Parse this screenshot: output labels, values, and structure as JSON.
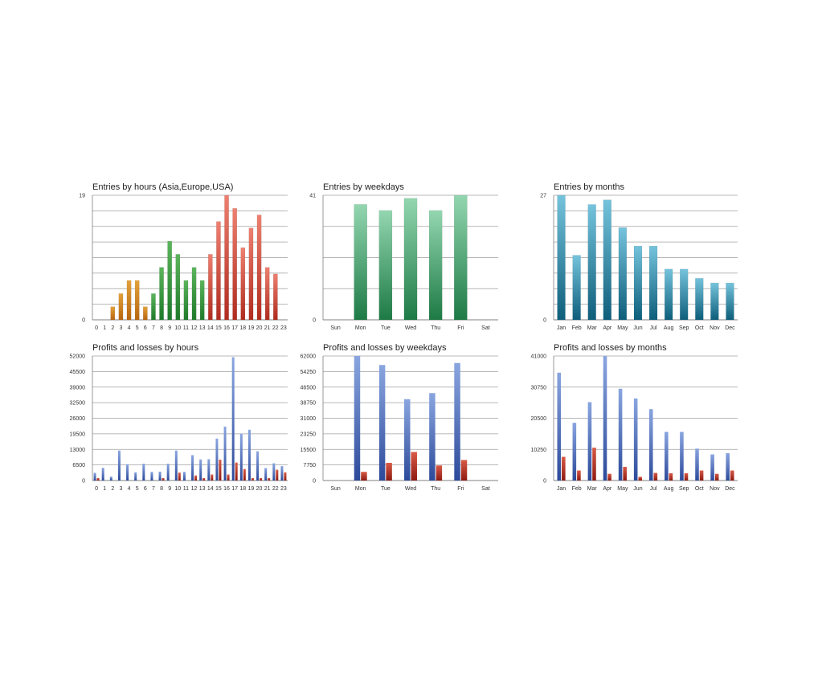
{
  "colors": {
    "grid": "#a0a0a0",
    "axis": "#808080",
    "asia_top": "#e3a23a",
    "asia_bottom": "#b8650f",
    "europe_top": "#5bb55b",
    "europe_bottom": "#1f7a2a",
    "usa_top": "#ee8070",
    "usa_bottom": "#b02b1e",
    "weekday_top": "#93d6b0",
    "weekday_bottom": "#1d7a45",
    "month_top": "#75c3dc",
    "month_bottom": "#0d5e7b",
    "profit_top": "#8aa6e0",
    "profit_bottom": "#2c4a9a",
    "loss_top": "#d85a46",
    "loss_bottom": "#8e1a12"
  },
  "chart_data": [
    {
      "id": "entries_hours",
      "type": "bar",
      "title": "Entries by hours (Asia,Europe,USA)",
      "categories": [
        "0",
        "1",
        "2",
        "3",
        "4",
        "5",
        "6",
        "7",
        "8",
        "9",
        "10",
        "11",
        "12",
        "13",
        "14",
        "15",
        "16",
        "17",
        "18",
        "19",
        "20",
        "21",
        "22",
        "23"
      ],
      "values": [
        0,
        0,
        2,
        4,
        6,
        6,
        2,
        4,
        8,
        12,
        10,
        6,
        8,
        6,
        10,
        15,
        19,
        17,
        11,
        14,
        16,
        8,
        7,
        0
      ],
      "group_colors": [
        "asia",
        "asia",
        "asia",
        "asia",
        "asia",
        "asia",
        "asia",
        "europe",
        "europe",
        "europe",
        "europe",
        "europe",
        "europe",
        "europe",
        "usa",
        "usa",
        "usa",
        "usa",
        "usa",
        "usa",
        "usa",
        "usa",
        "usa",
        "usa"
      ],
      "ylim": [
        0,
        19
      ],
      "yticks": [
        "0",
        "19"
      ],
      "gridlines": 8
    },
    {
      "id": "entries_weekdays",
      "type": "bar",
      "title": "Entries by weekdays",
      "categories": [
        "Sun",
        "Mon",
        "Tue",
        "Wed",
        "Thu",
        "Fri",
        "Sat"
      ],
      "values": [
        0,
        38,
        36,
        40,
        36,
        41,
        0
      ],
      "ylim": [
        0,
        41
      ],
      "yticks": [
        "0",
        "41"
      ],
      "gridlines": 4
    },
    {
      "id": "entries_months",
      "type": "bar",
      "title": "Entries by months",
      "categories": [
        "Jan",
        "Feb",
        "Mar",
        "Apr",
        "May",
        "Jun",
        "Jul",
        "Aug",
        "Sep",
        "Oct",
        "Nov",
        "Dec"
      ],
      "values": [
        27,
        14,
        25,
        26,
        20,
        16,
        16,
        11,
        11,
        9,
        8,
        8
      ],
      "ylim": [
        0,
        27
      ],
      "yticks": [
        "0",
        "27"
      ],
      "gridlines": 8
    },
    {
      "id": "pl_hours",
      "type": "bar",
      "title": "Profits and losses by hours",
      "categories": [
        "0",
        "1",
        "2",
        "3",
        "4",
        "5",
        "6",
        "7",
        "8",
        "9",
        "10",
        "11",
        "12",
        "13",
        "14",
        "15",
        "16",
        "17",
        "18",
        "19",
        "20",
        "21",
        "22",
        "23"
      ],
      "series": [
        {
          "name": "Profits",
          "values": [
            3200,
            5300,
            1600,
            12500,
            6800,
            3400,
            7000,
            3600,
            3700,
            7000,
            12500,
            3600,
            10600,
            8800,
            8900,
            17500,
            22500,
            51500,
            19500,
            21200,
            12200,
            5200,
            7200,
            6000
          ]
        },
        {
          "name": "Losses",
          "values": [
            1000,
            0,
            0,
            0,
            0,
            0,
            0,
            0,
            1000,
            0,
            3300,
            0,
            2100,
            1000,
            2500,
            8700,
            2500,
            7500,
            4800,
            1000,
            1000,
            1000,
            4500,
            3400
          ]
        }
      ],
      "ylim": [
        0,
        52000
      ],
      "yticks": [
        "0",
        "6500",
        "13000",
        "19500",
        "26000",
        "32500",
        "39000",
        "45500",
        "52000"
      ]
    },
    {
      "id": "pl_weekdays",
      "type": "bar",
      "title": "Profits and losses by weekdays",
      "categories": [
        "Sun",
        "Mon",
        "Tue",
        "Wed",
        "Thu",
        "Fri",
        "Sat"
      ],
      "series": [
        {
          "name": "Profits",
          "values": [
            0,
            62000,
            57500,
            40500,
            43500,
            58500,
            0
          ]
        },
        {
          "name": "Losses",
          "values": [
            0,
            4300,
            8800,
            14200,
            7500,
            10200,
            0
          ]
        }
      ],
      "ylim": [
        0,
        62000
      ],
      "yticks": [
        "0",
        "7750",
        "15500",
        "23250",
        "31000",
        "38750",
        "46500",
        "54250",
        "62000"
      ]
    },
    {
      "id": "pl_months",
      "type": "bar",
      "title": "Profits and losses by months",
      "categories": [
        "Jan",
        "Feb",
        "Mar",
        "Apr",
        "May",
        "Jun",
        "Jul",
        "Aug",
        "Sep",
        "Oct",
        "Nov",
        "Dec"
      ],
      "series": [
        {
          "name": "Profits",
          "values": [
            35500,
            19000,
            25800,
            41000,
            30200,
            27000,
            23500,
            16000,
            16000,
            10500,
            8600,
            9000
          ]
        },
        {
          "name": "Losses",
          "values": [
            7800,
            3300,
            10800,
            2200,
            4500,
            1200,
            2500,
            2400,
            2400,
            3300,
            2200,
            3300
          ]
        }
      ],
      "ylim": [
        0,
        41000
      ],
      "yticks": [
        "0",
        "10250",
        "20500",
        "30750",
        "41000"
      ]
    }
  ]
}
